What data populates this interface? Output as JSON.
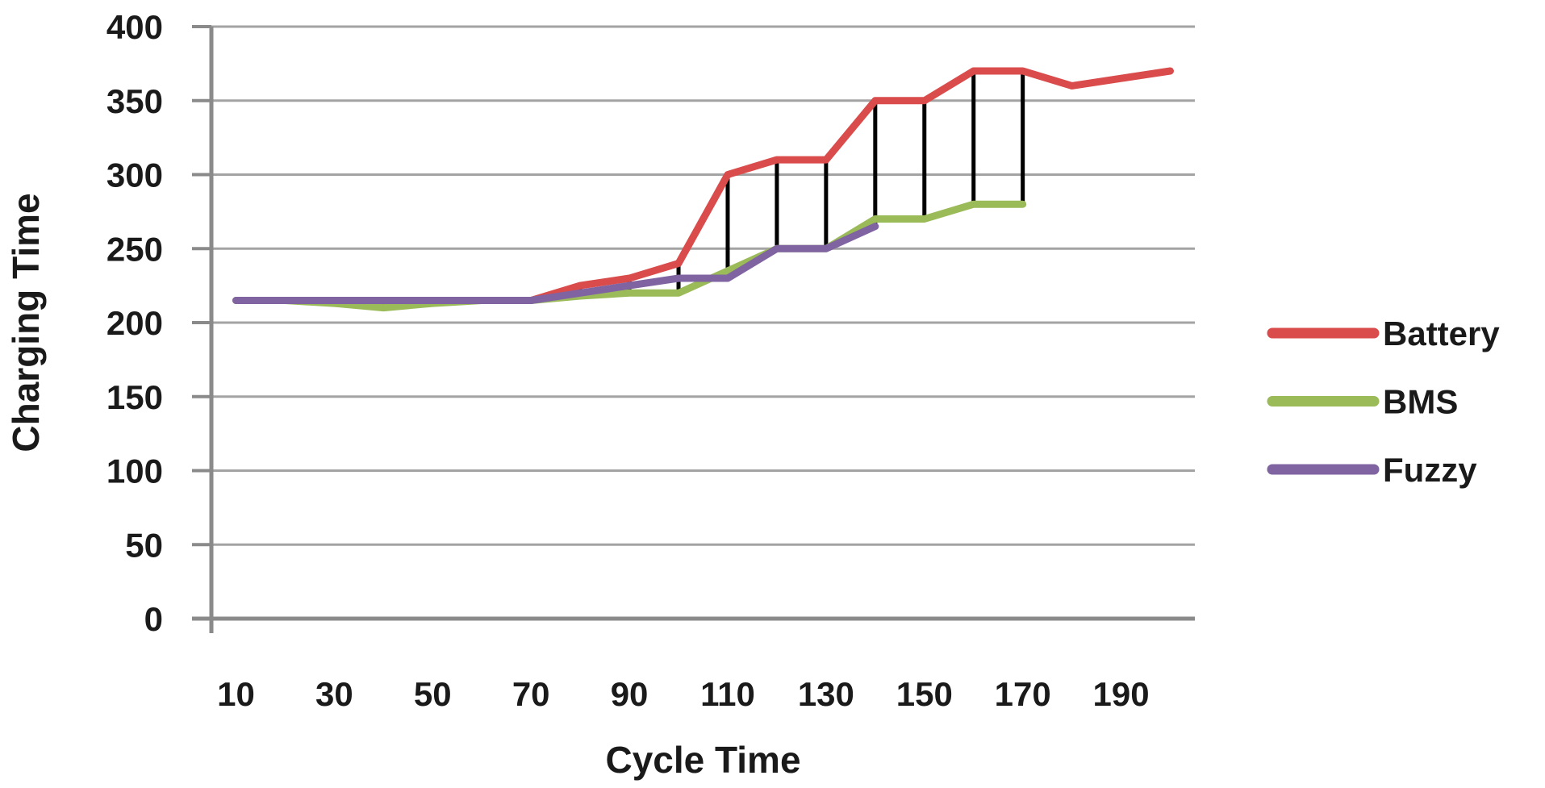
{
  "chart_data": {
    "type": "line",
    "title": "",
    "xlabel": "Cycle Time",
    "ylabel": "Charging Time",
    "x": [
      10,
      20,
      30,
      40,
      50,
      60,
      70,
      80,
      90,
      100,
      110,
      120,
      130,
      140,
      150,
      160,
      170,
      180,
      190,
      200
    ],
    "x_tick_labels": [
      10,
      30,
      50,
      70,
      90,
      110,
      130,
      150,
      170,
      190
    ],
    "ylim": [
      0,
      400
    ],
    "y_ticks": [
      400,
      350,
      300,
      250,
      200,
      150,
      100,
      50,
      0
    ],
    "grid": "horizontal",
    "legend_position": "right",
    "series": [
      {
        "name": "Battery",
        "color": "#DA4B4B",
        "values": [
          215,
          215,
          215,
          215,
          215,
          215,
          215,
          225,
          230,
          240,
          300,
          310,
          310,
          350,
          350,
          370,
          370,
          360,
          365,
          370
        ]
      },
      {
        "name": "BMS",
        "color": "#9BBB59",
        "values": [
          215,
          215,
          213,
          210,
          213,
          215,
          215,
          218,
          220,
          220,
          235,
          250,
          250,
          270,
          270,
          280,
          280,
          null,
          null,
          null
        ]
      },
      {
        "name": "Fuzzy",
        "color": "#8064A2",
        "values": [
          215,
          215,
          215,
          215,
          215,
          215,
          215,
          220,
          225,
          230,
          230,
          250,
          250,
          265,
          null,
          null,
          null,
          null,
          null,
          null
        ]
      }
    ],
    "high_low_lines": {
      "color": "#000000",
      "categories": [
        40,
        80,
        90,
        100,
        110,
        120,
        130,
        140,
        150,
        160,
        170
      ]
    }
  },
  "styles": {
    "background": "#FFFFFF",
    "grid_color": "#A3A3A3",
    "axis_color": "#8A8A8A",
    "text_color": "#1A1A1A"
  }
}
